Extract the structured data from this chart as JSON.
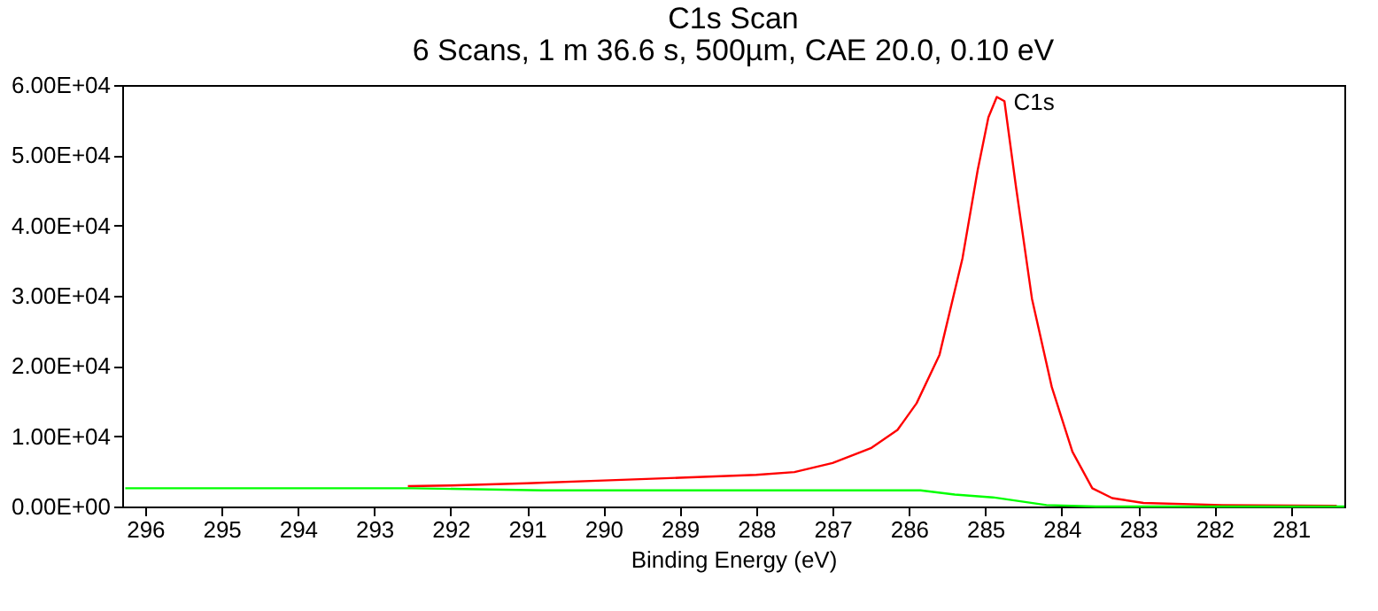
{
  "chart_data": {
    "type": "line",
    "title": "C1s Scan",
    "subtitle": "6 Scans,  1 m 36.6 s,  500µm,  CAE 20.0,  0.10 eV",
    "xlabel": "Binding Energy (eV)",
    "xlim": [
      296.3,
      280.3
    ],
    "xticks": [
      296,
      295,
      294,
      293,
      292,
      291,
      290,
      289,
      288,
      287,
      286,
      285,
      284,
      283,
      282,
      281
    ],
    "ylim": [
      0,
      60000
    ],
    "yticks": [
      {
        "value": 0,
        "label": "0.00E+00"
      },
      {
        "value": 10000,
        "label": "1.00E+04"
      },
      {
        "value": 20000,
        "label": "2.00E+04"
      },
      {
        "value": 30000,
        "label": "3.00E+04"
      },
      {
        "value": 40000,
        "label": "4.00E+04"
      },
      {
        "value": 50000,
        "label": "5.00E+04"
      },
      {
        "value": 60000,
        "label": "6.00E+04"
      }
    ],
    "grid": false,
    "marker": "none",
    "line_style": "solid",
    "series": [
      {
        "color": "#ff0000",
        "x": [
          292.56,
          292.0,
          291.0,
          290.0,
          289.0,
          288.0,
          287.5,
          287.0,
          286.5,
          286.15,
          285.9,
          285.6,
          285.3,
          285.1,
          284.96,
          284.85,
          284.75,
          284.6,
          284.39,
          284.13,
          283.86,
          283.6,
          283.34,
          282.93,
          281.9,
          280.4
        ],
        "values": [
          2900,
          3000,
          3300,
          3700,
          4100,
          4500,
          4900,
          6200,
          8300,
          10900,
          14700,
          21600,
          35300,
          47900,
          55400,
          58300,
          57700,
          45600,
          29600,
          17000,
          7800,
          2600,
          1200,
          500,
          200,
          100
        ]
      },
      {
        "color": "#00ff00",
        "x": [
          296.26,
          292.5,
          290.8,
          285.85,
          285.4,
          284.9,
          284.2,
          283.55,
          280.3
        ],
        "values": [
          2600,
          2600,
          2300,
          2300,
          1700,
          1300,
          200,
          0,
          0
        ]
      }
    ],
    "annotations": [
      {
        "text": "C1s",
        "x": 284.7,
        "y": 57500
      }
    ]
  }
}
